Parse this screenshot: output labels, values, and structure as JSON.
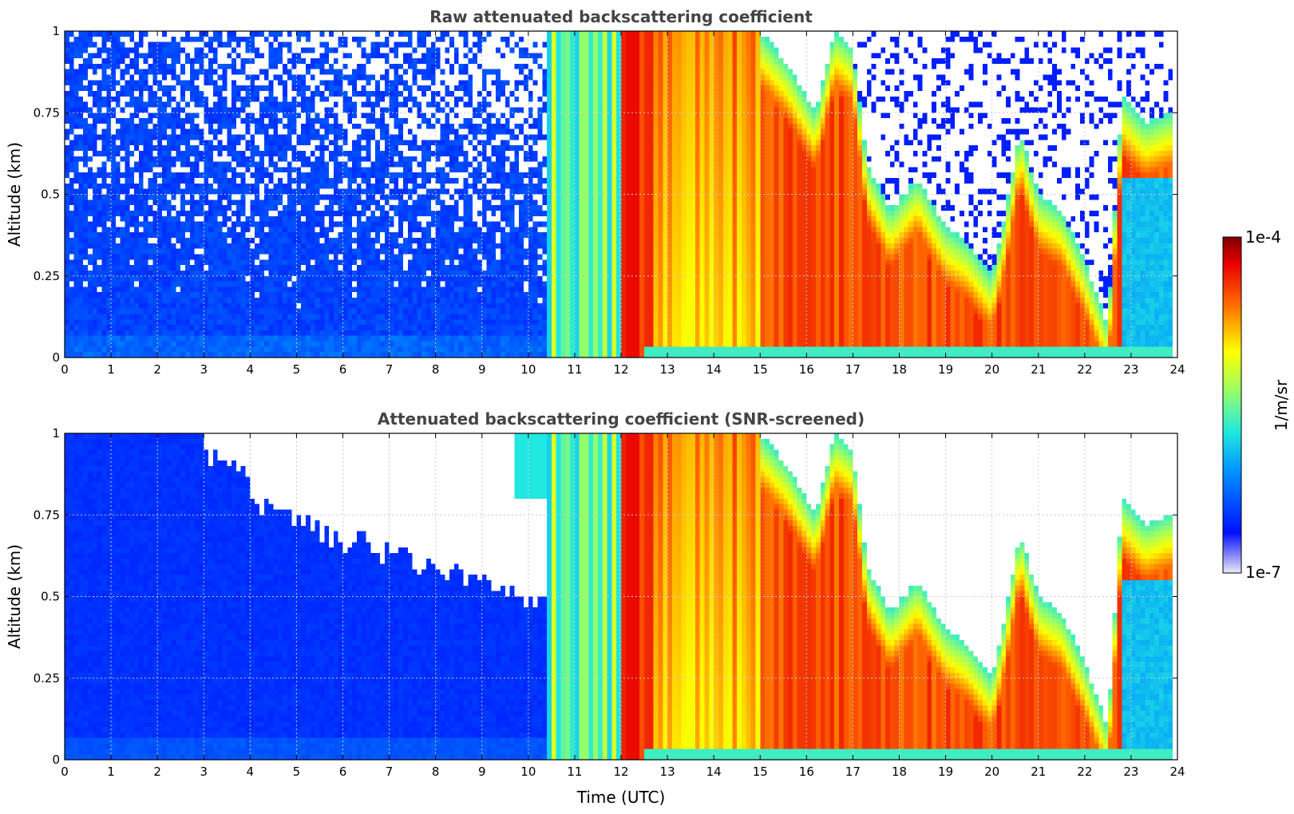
{
  "figure": {
    "colorbar": {
      "label": "1/m/sr",
      "max_label": "1e-4",
      "min_label": "1e-7",
      "scale": "log",
      "range": [
        1e-07,
        0.0001
      ],
      "colormap": "jet"
    }
  },
  "chart_data": [
    {
      "type": "heatmap",
      "title": "Raw attenuated backscattering coefficient",
      "xlabel": "",
      "ylabel": "Altitude (km)",
      "xlim": [
        0,
        24
      ],
      "ylim": [
        0,
        1
      ],
      "xticks": [
        "0",
        "1",
        "2",
        "3",
        "4",
        "5",
        "6",
        "7",
        "8",
        "9",
        "10",
        "11",
        "12",
        "13",
        "14",
        "15",
        "16",
        "17",
        "18",
        "19",
        "20",
        "21",
        "22",
        "23",
        "24"
      ],
      "yticks": [
        "0",
        "0.25",
        "0.5",
        "0.75",
        "1"
      ],
      "grid": true,
      "screened": false
    },
    {
      "type": "heatmap",
      "title": "Attenuated backscattering coefficient (SNR-screened)",
      "xlabel": "Time (UTC)",
      "ylabel": "Altitude (km)",
      "xlim": [
        0,
        24
      ],
      "ylim": [
        0,
        1
      ],
      "xticks": [
        "0",
        "1",
        "2",
        "3",
        "4",
        "5",
        "6",
        "7",
        "8",
        "9",
        "10",
        "11",
        "12",
        "13",
        "14",
        "15",
        "16",
        "17",
        "18",
        "19",
        "20",
        "21",
        "22",
        "23",
        "24"
      ],
      "yticks": [
        "0",
        "0.25",
        "0.5",
        "0.75",
        "1"
      ],
      "grid": true,
      "screened": true
    }
  ]
}
